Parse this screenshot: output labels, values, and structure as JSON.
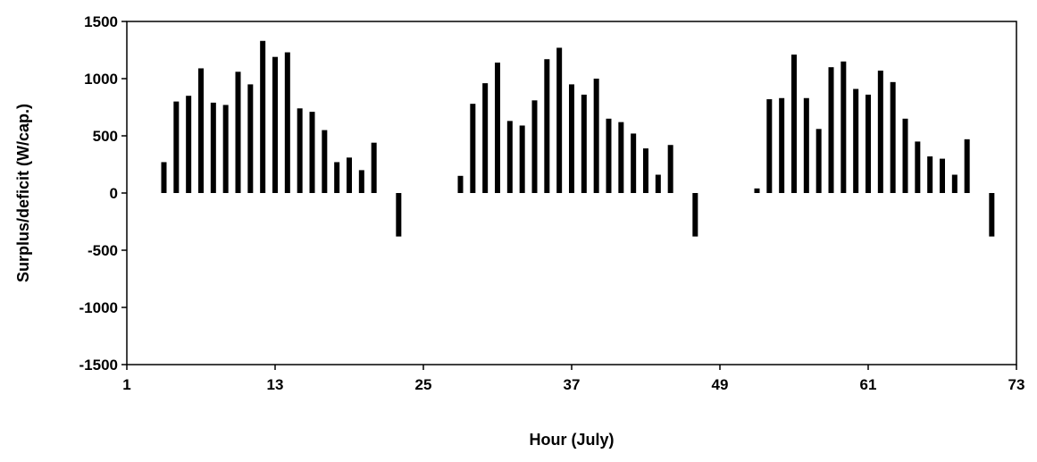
{
  "chart_data": {
    "type": "bar",
    "title": "",
    "xlabel": "Hour (July)",
    "ylabel": "Surplus/deficit (W/cap.)",
    "xlim": [
      1,
      73
    ],
    "ylim": [
      -1500,
      1500
    ],
    "x_ticks": [
      1,
      13,
      25,
      37,
      49,
      61,
      73
    ],
    "y_ticks": [
      1500,
      1000,
      500,
      0,
      -500,
      -1000,
      -1500
    ],
    "grid": false,
    "legend": "none",
    "bar_color": "#000000",
    "series": [
      {
        "x": [
          4,
          5,
          6,
          7,
          8,
          9,
          10,
          11,
          12,
          13,
          14,
          15,
          16,
          17,
          18,
          19,
          20,
          21,
          23,
          28,
          29,
          30,
          31,
          32,
          33,
          34,
          35,
          36,
          37,
          38,
          39,
          40,
          41,
          42,
          43,
          44,
          45,
          47,
          52,
          53,
          54,
          55,
          56,
          57,
          58,
          59,
          60,
          61,
          62,
          63,
          64,
          65,
          66,
          67,
          68,
          69,
          71
        ],
        "values": [
          270,
          800,
          850,
          1090,
          790,
          770,
          1060,
          950,
          1330,
          1190,
          1230,
          740,
          710,
          550,
          270,
          310,
          200,
          440,
          -380,
          150,
          780,
          960,
          1140,
          630,
          590,
          810,
          1170,
          1270,
          950,
          860,
          1000,
          650,
          620,
          520,
          390,
          160,
          420,
          -380,
          40,
          820,
          830,
          1210,
          830,
          560,
          1100,
          1150,
          910,
          860,
          1070,
          970,
          650,
          450,
          320,
          300,
          160,
          470,
          -380
        ]
      }
    ]
  }
}
